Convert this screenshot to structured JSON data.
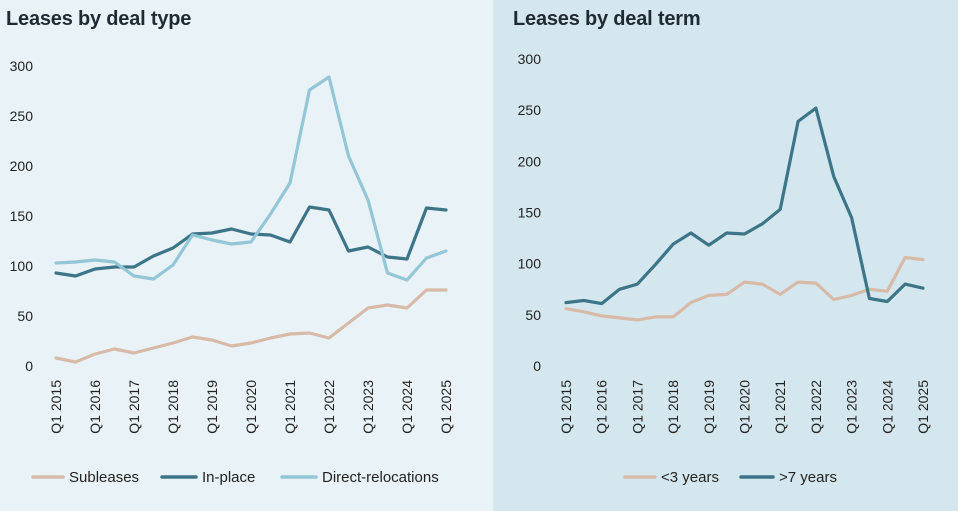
{
  "colors": {
    "subleases": "#d7bba8",
    "inplace": "#3c7588",
    "direct": "#93c6d6",
    "short": "#d7bba8",
    "long": "#3c7588"
  },
  "chart_data": [
    {
      "type": "line",
      "title": "Leases by deal type",
      "ylim": [
        0,
        300
      ],
      "yticks": [
        0,
        50,
        100,
        150,
        200,
        250,
        300
      ],
      "xlabels": [
        "Q1 2015",
        "Q1 2016",
        "Q1 2017",
        "Q1 2018",
        "Q1 2019",
        "Q1 2020",
        "Q1 2021",
        "Q1 2022",
        "Q1 2023",
        "Q1 2024",
        "Q1 2025"
      ],
      "n_points": 21,
      "series": [
        {
          "name": "Subleases",
          "color_key": "subleases",
          "values": [
            8,
            4,
            12,
            17,
            13,
            18,
            23,
            29,
            26,
            20,
            23,
            28,
            32,
            33,
            28,
            43,
            58,
            61,
            58,
            76,
            76
          ]
        },
        {
          "name": "In-place",
          "color_key": "inplace",
          "values": [
            93,
            90,
            97,
            99,
            99,
            110,
            118,
            132,
            133,
            137,
            132,
            131,
            124,
            159,
            156,
            115,
            119,
            109,
            107,
            158,
            156
          ]
        },
        {
          "name": "Direct-relocations",
          "color_key": "direct",
          "values": [
            103,
            104,
            106,
            104,
            90,
            87,
            101,
            131,
            126,
            122,
            124,
            152,
            183,
            276,
            289,
            210,
            166,
            93,
            86,
            108,
            115
          ]
        }
      ]
    },
    {
      "type": "line",
      "title": "Leases by deal term",
      "ylim": [
        0,
        300
      ],
      "yticks": [
        0,
        50,
        100,
        150,
        200,
        250,
        300
      ],
      "xlabels": [
        "Q1 2015",
        "Q1 2016",
        "Q1 2017",
        "Q1 2018",
        "Q1 2019",
        "Q1 2020",
        "Q1 2021",
        "Q1 2022",
        "Q1 2023",
        "Q1 2024",
        "Q1 2025"
      ],
      "n_points": 21,
      "series": [
        {
          "name": "<3 years",
          "color_key": "short",
          "values": [
            56,
            53,
            49,
            47,
            45,
            48,
            48,
            62,
            69,
            70,
            82,
            80,
            70,
            82,
            81,
            65,
            69,
            75,
            73,
            106,
            104
          ]
        },
        {
          "name": ">7 years",
          "color_key": "long",
          "values": [
            62,
            64,
            61,
            75,
            80,
            99,
            119,
            130,
            118,
            130,
            129,
            139,
            153,
            239,
            252,
            185,
            145,
            66,
            63,
            80,
            76
          ]
        }
      ]
    }
  ]
}
